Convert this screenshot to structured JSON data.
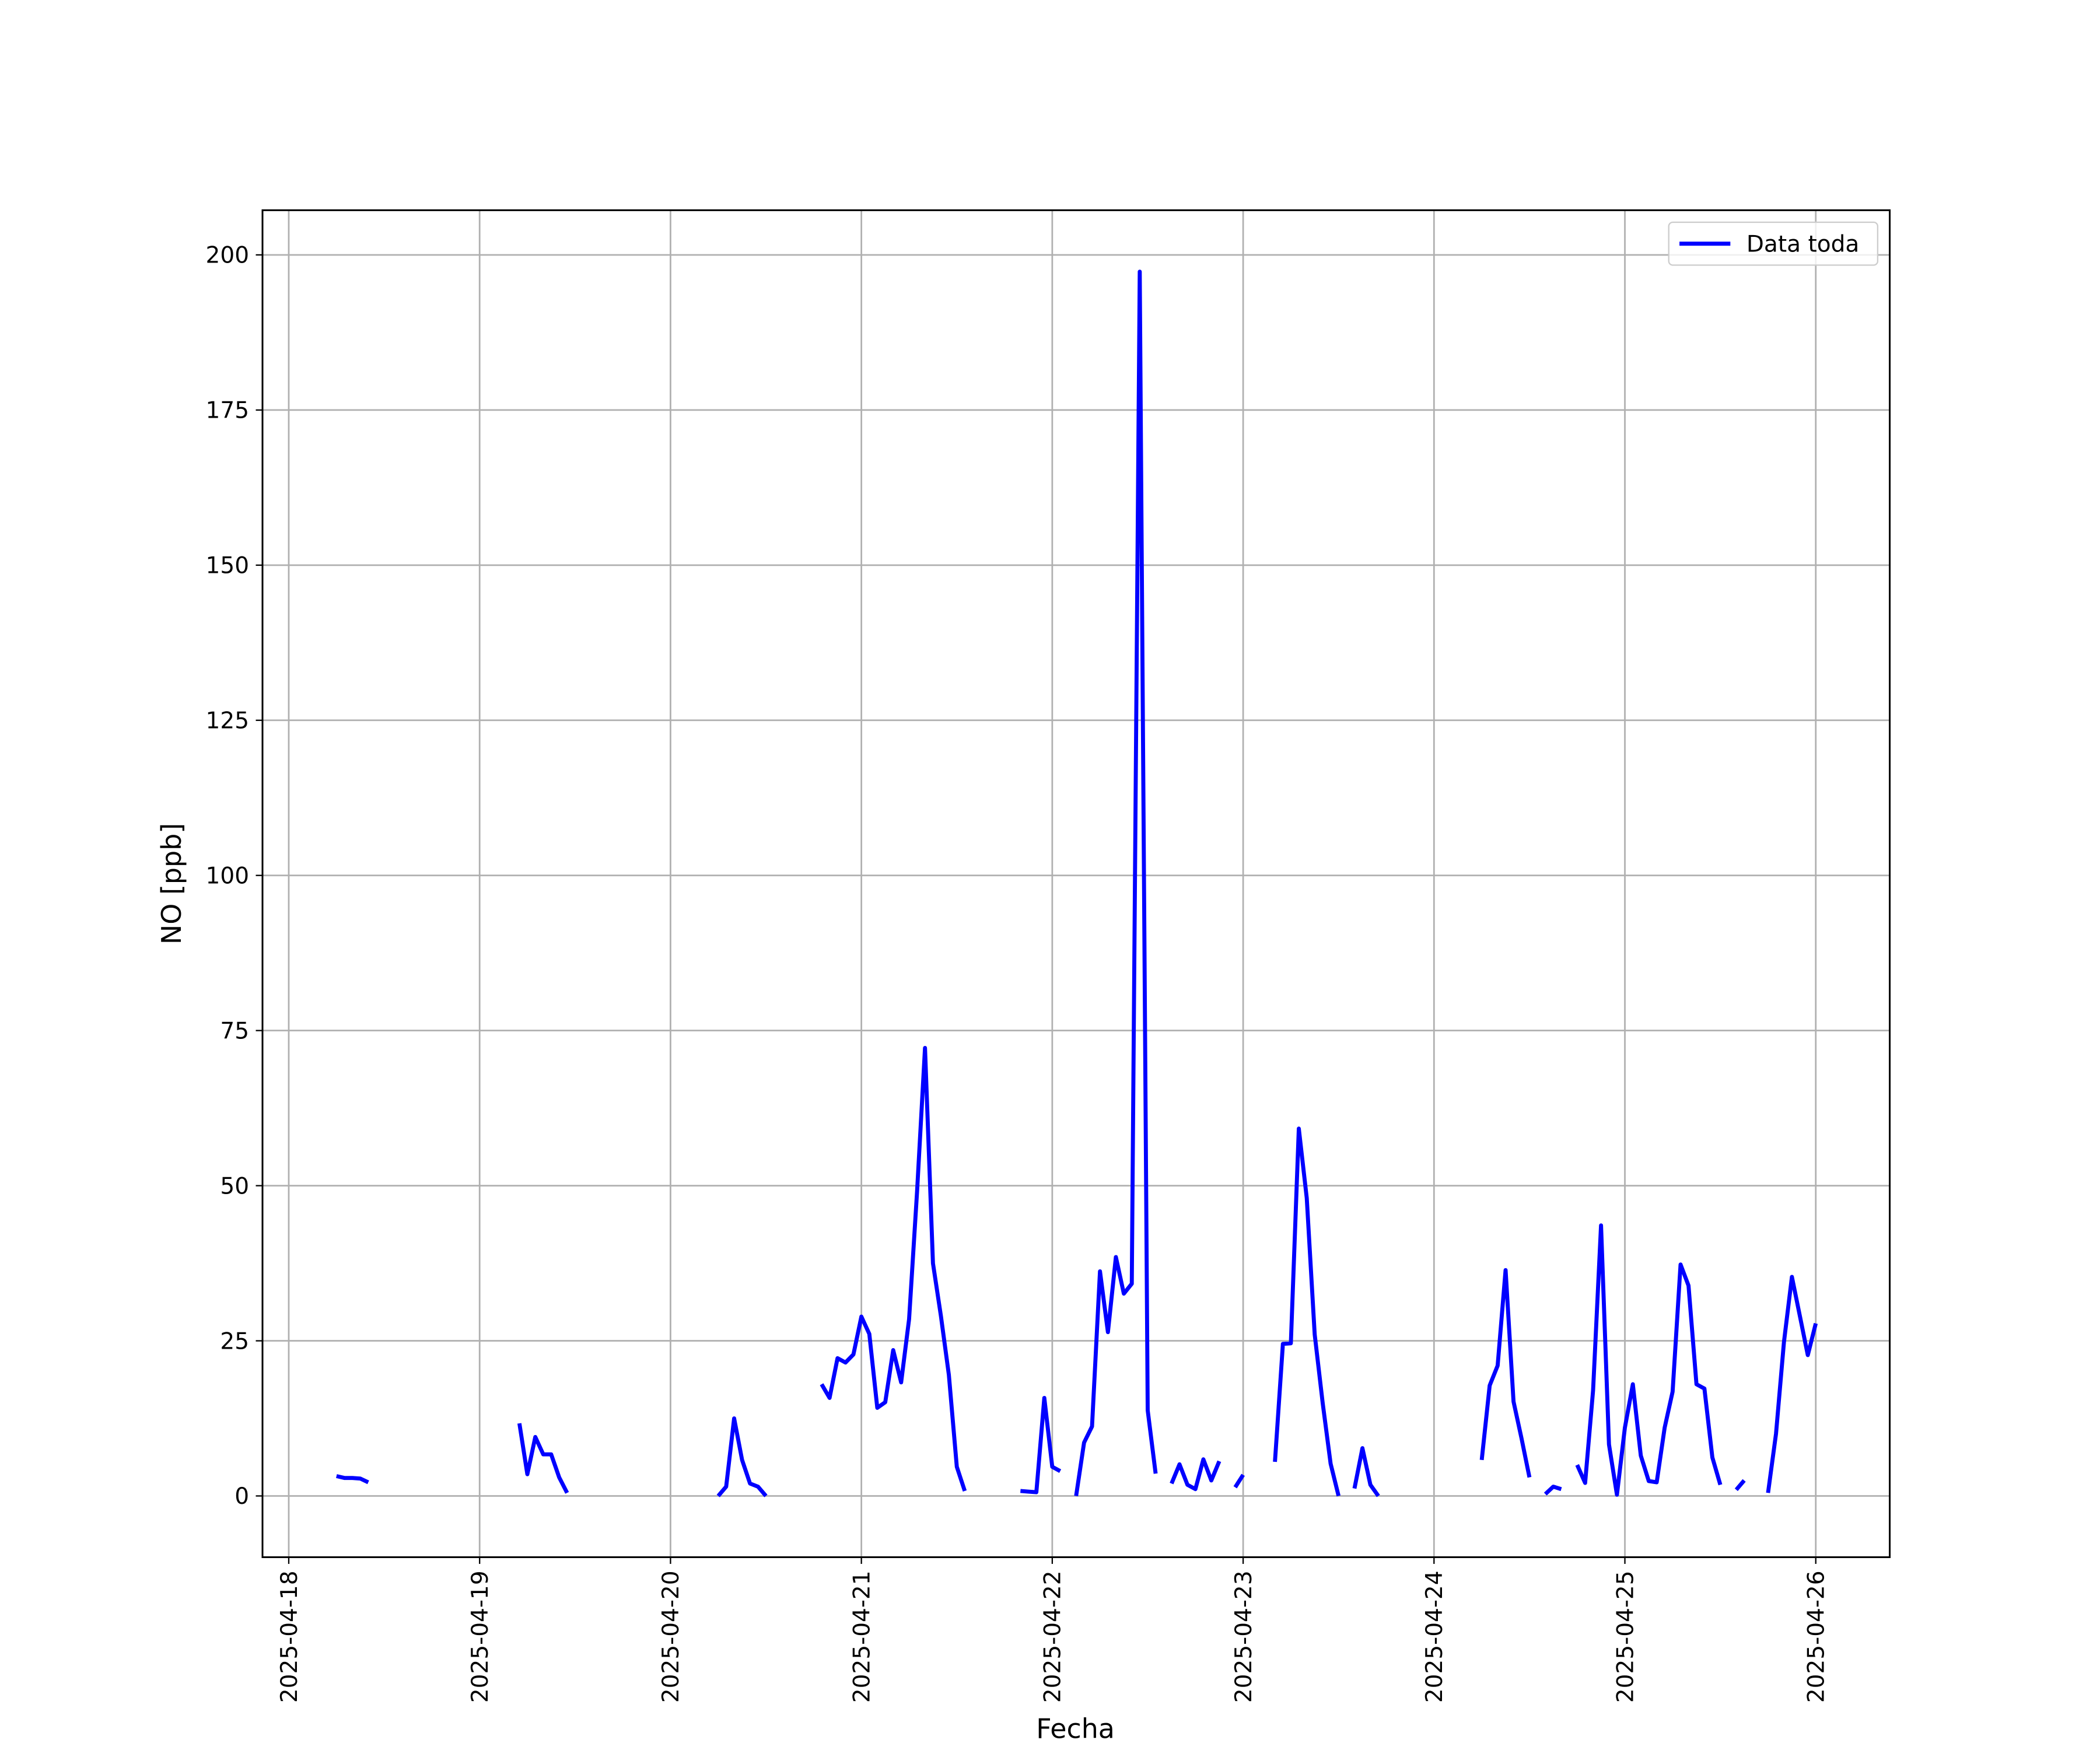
{
  "chart_data": {
    "type": "line",
    "xlabel": "Fecha",
    "ylabel": "NO [ppb]",
    "x": [
      "2025-04-18 06:00",
      "2025-04-18 07:00",
      "2025-04-18 08:00",
      "2025-04-18 09:00",
      "2025-04-18 10:00",
      "2025-04-18 11:00",
      "2025-04-19 05:00",
      "2025-04-19 06:00",
      "2025-04-19 07:00",
      "2025-04-19 08:00",
      "2025-04-19 09:00",
      "2025-04-19 10:00",
      "2025-04-19 11:00",
      "2025-04-19 12:00",
      "2025-04-20 06:00",
      "2025-04-20 07:00",
      "2025-04-20 08:00",
      "2025-04-20 09:00",
      "2025-04-20 10:00",
      "2025-04-20 11:00",
      "2025-04-20 12:00",
      "2025-04-20 13:00",
      "2025-04-20 19:00",
      "2025-04-20 20:00",
      "2025-04-20 21:00",
      "2025-04-20 22:00",
      "2025-04-20 23:00",
      "2025-04-21 00:00",
      "2025-04-21 01:00",
      "2025-04-21 02:00",
      "2025-04-21 03:00",
      "2025-04-21 04:00",
      "2025-04-21 05:00",
      "2025-04-21 06:00",
      "2025-04-21 07:00",
      "2025-04-21 08:00",
      "2025-04-21 09:00",
      "2025-04-21 10:00",
      "2025-04-21 11:00",
      "2025-04-21 12:00",
      "2025-04-21 13:00",
      "2025-04-21 14:00",
      "2025-04-21 20:00",
      "2025-04-21 21:00",
      "2025-04-21 22:00",
      "2025-04-21 23:00",
      "2025-04-22 00:00",
      "2025-04-22 01:00",
      "2025-04-22 02:00",
      "2025-04-22 03:00",
      "2025-04-22 04:00",
      "2025-04-22 05:00",
      "2025-04-22 06:00",
      "2025-04-22 07:00",
      "2025-04-22 08:00",
      "2025-04-22 09:00",
      "2025-04-22 10:00",
      "2025-04-22 11:00",
      "2025-04-22 12:00",
      "2025-04-22 13:00",
      "2025-04-22 14:00",
      "2025-04-22 15:00",
      "2025-04-22 16:00",
      "2025-04-22 17:00",
      "2025-04-22 18:00",
      "2025-04-22 19:00",
      "2025-04-22 20:00",
      "2025-04-22 21:00",
      "2025-04-22 22:00",
      "2025-04-22 23:00",
      "2025-04-23 00:00",
      "2025-04-23 01:00",
      "2025-04-23 04:00",
      "2025-04-23 05:00",
      "2025-04-23 06:00",
      "2025-04-23 07:00",
      "2025-04-23 08:00",
      "2025-04-23 09:00",
      "2025-04-23 10:00",
      "2025-04-23 11:00",
      "2025-04-23 12:00",
      "2025-04-23 13:00",
      "2025-04-23 14:00",
      "2025-04-23 15:00",
      "2025-04-23 16:00",
      "2025-04-23 17:00",
      "2025-04-23 18:00",
      "2025-04-24 06:00",
      "2025-04-24 07:00",
      "2025-04-24 08:00",
      "2025-04-24 09:00",
      "2025-04-24 10:00",
      "2025-04-24 11:00",
      "2025-04-24 12:00",
      "2025-04-24 13:00",
      "2025-04-24 14:00",
      "2025-04-24 15:00",
      "2025-04-24 16:00",
      "2025-04-24 17:00",
      "2025-04-24 18:00",
      "2025-04-24 19:00",
      "2025-04-24 20:00",
      "2025-04-24 21:00",
      "2025-04-24 22:00",
      "2025-04-24 23:00",
      "2025-04-25 00:00",
      "2025-04-25 01:00",
      "2025-04-25 02:00",
      "2025-04-25 03:00",
      "2025-04-25 04:00",
      "2025-04-25 05:00",
      "2025-04-25 06:00",
      "2025-04-25 07:00",
      "2025-04-25 08:00",
      "2025-04-25 09:00",
      "2025-04-25 10:00",
      "2025-04-25 11:00",
      "2025-04-25 12:00",
      "2025-04-25 13:00",
      "2025-04-25 14:00",
      "2025-04-25 15:00",
      "2025-04-25 16:00",
      "2025-04-25 18:00",
      "2025-04-25 19:00",
      "2025-04-25 20:00",
      "2025-04-25 21:00",
      "2025-04-25 22:00",
      "2025-04-25 23:00",
      "2025-04-26 00:00"
    ],
    "series": [
      {
        "name": "Data toda",
        "color": "#0000ff",
        "values": [
          3.2,
          2.9,
          2.9,
          2.8,
          2.2,
          null,
          11.7,
          3.5,
          9.5,
          6.7,
          6.7,
          3.0,
          0.5,
          null,
          0,
          1.5,
          12.5,
          5.8,
          2.0,
          1.5,
          0,
          null,
          18,
          15.8,
          22.2,
          21.5,
          22.8,
          28.9,
          26.1,
          14.2,
          15.1,
          23.5,
          18.3,
          28.5,
          49,
          72.2,
          37.5,
          29,
          19.5,
          4.7,
          0.8,
          null,
          0.8,
          0.7,
          0.6,
          15.8,
          4.7,
          4.0,
          null,
          0,
          8.6,
          11.2,
          36.2,
          26.4,
          38.5,
          32.6,
          34.2,
          197.3,
          13.8,
          3.6,
          null,
          2.0,
          5.1,
          1.8,
          1.1,
          5.9,
          2.5,
          5.6,
          null,
          1.4,
          3.4,
          null,
          5.5,
          24.5,
          24.6,
          59.2,
          48,
          26,
          15,
          5.2,
          0,
          null,
          1.2,
          7.7,
          1.8,
          0,
          null,
          5.8,
          17.8,
          21,
          36.4,
          15.2,
          9.3,
          3.0,
          null,
          0.3,
          1.5,
          1.1,
          null,
          5.0,
          2.1,
          17,
          43.6,
          8.3,
          0.2,
          11,
          18,
          6.5,
          2.4,
          2.2,
          11,
          16.8,
          37.3,
          33.9,
          18,
          17.3,
          6.2,
          1.8,
          null,
          1.0,
          2.5,
          null,
          0.5,
          10,
          24.8,
          35.3,
          29,
          22.7,
          27.8
        ]
      }
    ],
    "xlim": [
      "2025-04-17 20:42",
      "2025-04-26 09:18"
    ],
    "xticks": [
      "2025-04-18",
      "2025-04-19",
      "2025-04-20",
      "2025-04-21",
      "2025-04-22",
      "2025-04-23",
      "2025-04-24",
      "2025-04-25",
      "2025-04-26"
    ],
    "ylim": [
      -9.87,
      207.2
    ],
    "yticks": [
      0,
      25,
      50,
      75,
      100,
      125,
      150,
      175,
      200
    ],
    "grid": true,
    "legend": "upper right"
  }
}
